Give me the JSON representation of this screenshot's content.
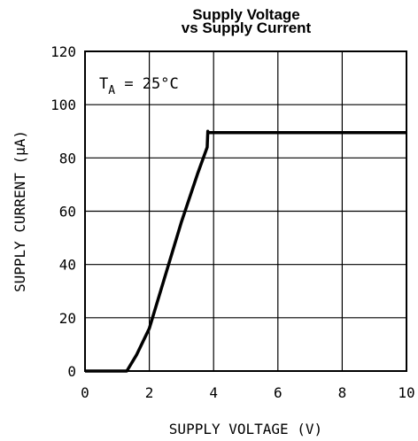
{
  "chart_data": {
    "type": "line",
    "title": "Supply Voltage",
    "subtitle": "vs Supply Current",
    "xlabel": "SUPPLY VOLTAGE (V)",
    "ylabel": "SUPPLY CURRENT (μA)",
    "xlim": [
      0,
      10
    ],
    "ylim": [
      0,
      120
    ],
    "xticks": [
      "0",
      "2",
      "4",
      "6",
      "8",
      "10"
    ],
    "yticks": [
      "0",
      "20",
      "40",
      "60",
      "80",
      "100",
      "120"
    ],
    "grid": true,
    "annotation": {
      "prefix": "T",
      "subscript": "A",
      "suffix": " = 25°C"
    },
    "series": [
      {
        "x": [
          0,
          1.3,
          1.6,
          2.0,
          2.5,
          3.0,
          3.5,
          3.8,
          3.82,
          3.82,
          10
        ],
        "y": [
          0,
          0,
          6,
          16,
          36,
          56,
          74,
          84,
          90,
          89.5,
          89.5
        ]
      }
    ],
    "color": "#000000"
  }
}
